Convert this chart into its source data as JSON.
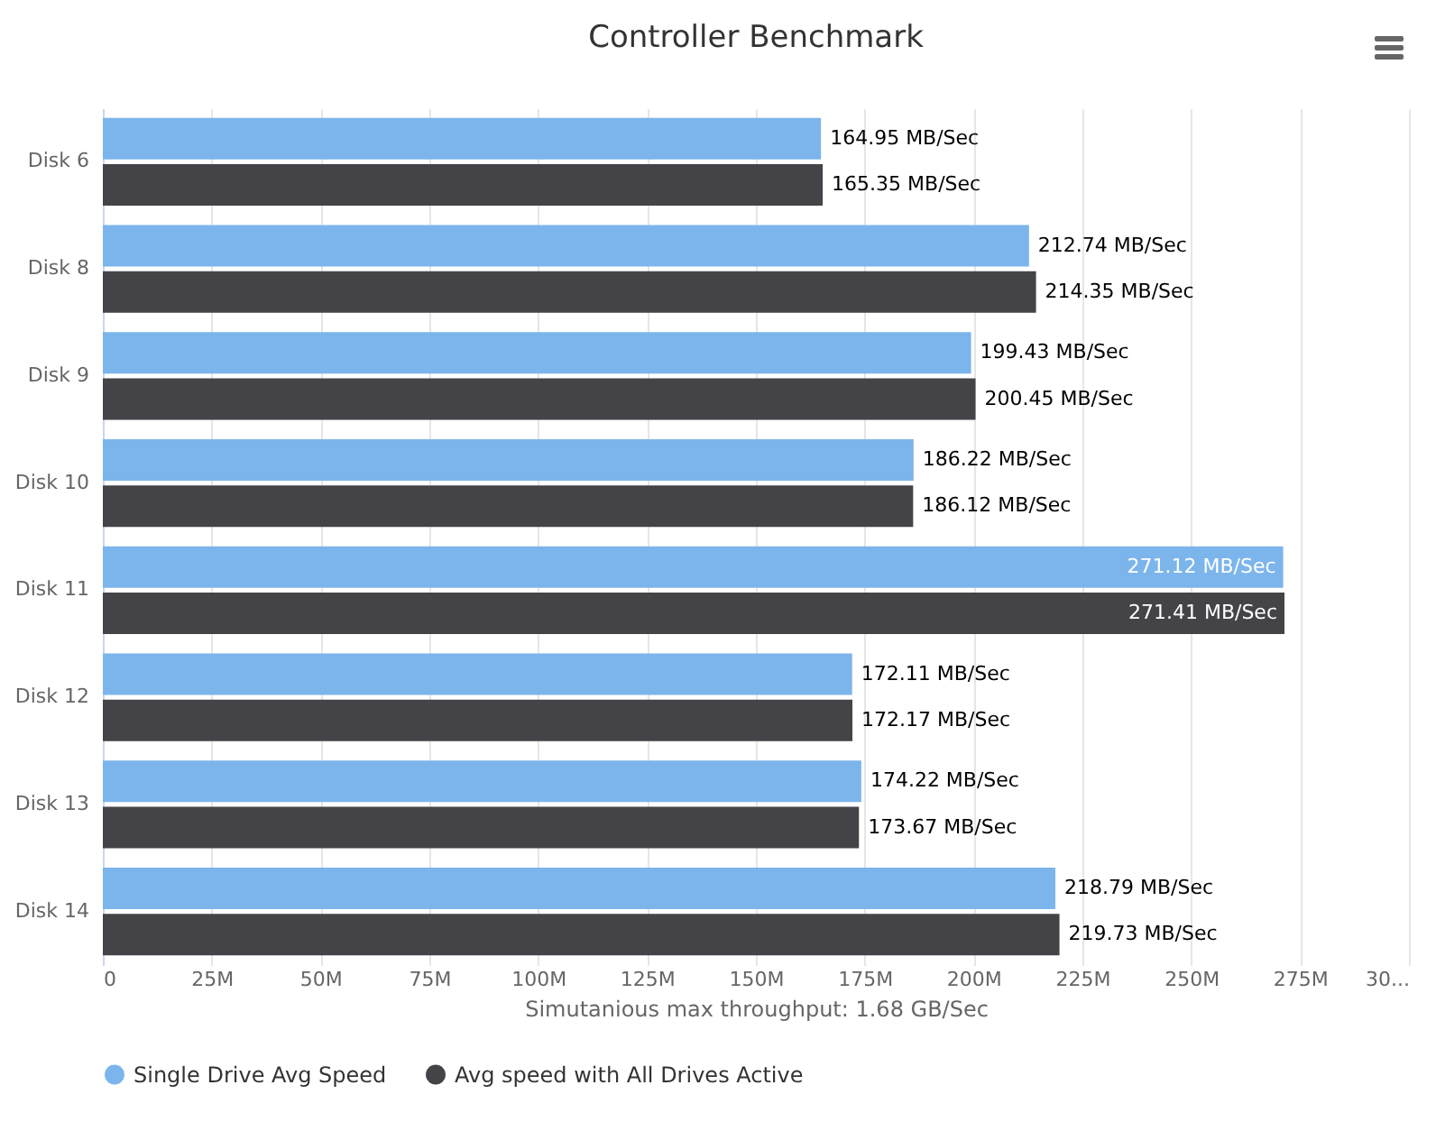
{
  "chart_data": {
    "type": "bar",
    "orientation": "horizontal",
    "title": "Controller Benchmark",
    "xlabel": "Simutanious max throughput: 1.68 GB/Sec",
    "categories": [
      "Disk 6",
      "Disk 8",
      "Disk 9",
      "Disk 10",
      "Disk 11",
      "Disk 12",
      "Disk 13",
      "Disk 14"
    ],
    "series": [
      {
        "name": "Single Drive Avg Speed",
        "color": "#7cb5ec",
        "values": [
          164.95,
          212.74,
          199.43,
          186.22,
          271.12,
          172.11,
          174.22,
          218.79
        ],
        "value_labels": [
          "164.95 MB/Sec",
          "212.74 MB/Sec",
          "199.43 MB/Sec",
          "186.22 MB/Sec",
          "271.12 MB/Sec",
          "172.11 MB/Sec",
          "174.22 MB/Sec",
          "218.79 MB/Sec"
        ]
      },
      {
        "name": "Avg speed with All Drives Active",
        "color": "#434348",
        "values": [
          165.35,
          214.35,
          200.45,
          186.12,
          271.41,
          172.17,
          173.67,
          219.73
        ],
        "value_labels": [
          "165.35 MB/Sec",
          "214.35 MB/Sec",
          "200.45 MB/Sec",
          "186.12 MB/Sec",
          "271.41 MB/Sec",
          "172.17 MB/Sec",
          "173.67 MB/Sec",
          "219.73 MB/Sec"
        ]
      }
    ],
    "xlim": [
      0,
      300
    ],
    "xticks": [
      0,
      {
        "value": 25,
        "label": "25M"
      },
      {
        "value": 50,
        "label": "50M"
      },
      {
        "value": 75,
        "label": "75M"
      },
      {
        "value": 100,
        "label": "100M"
      },
      {
        "value": 125,
        "label": "125M"
      },
      {
        "value": 150,
        "label": "150M"
      },
      {
        "value": 175,
        "label": "175M"
      },
      {
        "value": 200,
        "label": "200M"
      },
      {
        "value": 225,
        "label": "225M"
      },
      {
        "value": 250,
        "label": "250M"
      },
      {
        "value": 275,
        "label": "275M"
      },
      {
        "value": 300,
        "label": "30..."
      }
    ],
    "grid": "x",
    "legend": "bottom"
  }
}
